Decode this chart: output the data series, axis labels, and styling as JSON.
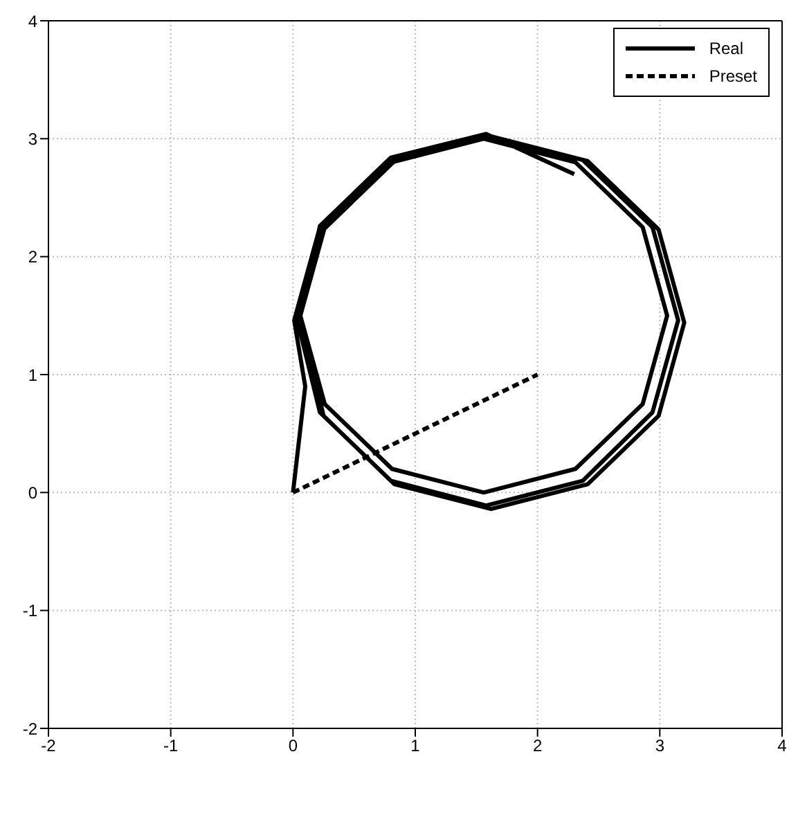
{
  "chart_data": {
    "type": "line",
    "xlim": [
      -2,
      4
    ],
    "ylim": [
      -2,
      4
    ],
    "xticks": [
      -2,
      -1,
      0,
      1,
      2,
      3,
      4
    ],
    "yticks": [
      -2,
      -1,
      0,
      1,
      2,
      3,
      4
    ],
    "grid": true,
    "legend": "top right",
    "marker": "none",
    "series": [
      {
        "name": "Real",
        "color": "#000000",
        "line_style": "solid",
        "x": [
          0,
          0.1,
          0.01,
          0.22,
          0.8,
          1.58,
          2.37,
          2.94,
          3.15,
          2.94,
          2.37,
          1.58,
          0.8,
          0.22,
          0.04,
          0.25,
          0.83,
          1.62,
          2.41,
          2.99,
          3.2,
          2.99,
          2.41,
          1.62,
          0.83,
          0.25,
          0.06,
          0.26,
          0.81,
          1.56,
          2.31,
          2.86,
          3.06,
          2.86,
          2.31,
          1.56,
          0.81,
          0.26,
          0.06,
          0.22,
          0.8,
          1.58,
          2.3
        ],
        "values": [
          0,
          0.9,
          1.46,
          2.25,
          2.82,
          3.03,
          2.82,
          2.25,
          1.46,
          0.68,
          0.1,
          -0.11,
          0.1,
          0.68,
          1.44,
          2.23,
          2.81,
          3.02,
          2.81,
          2.23,
          1.44,
          0.65,
          0.07,
          -0.14,
          0.07,
          0.65,
          1.5,
          2.25,
          2.8,
          3.0,
          2.8,
          2.25,
          1.5,
          0.75,
          0.2,
          0,
          0.2,
          0.75,
          1.5,
          2.26,
          2.84,
          3.04,
          2.7
        ]
      },
      {
        "name": "Preset",
        "color": "#000000",
        "line_style": "dashed",
        "x": [
          0,
          2
        ],
        "values": [
          0,
          1
        ]
      }
    ]
  }
}
